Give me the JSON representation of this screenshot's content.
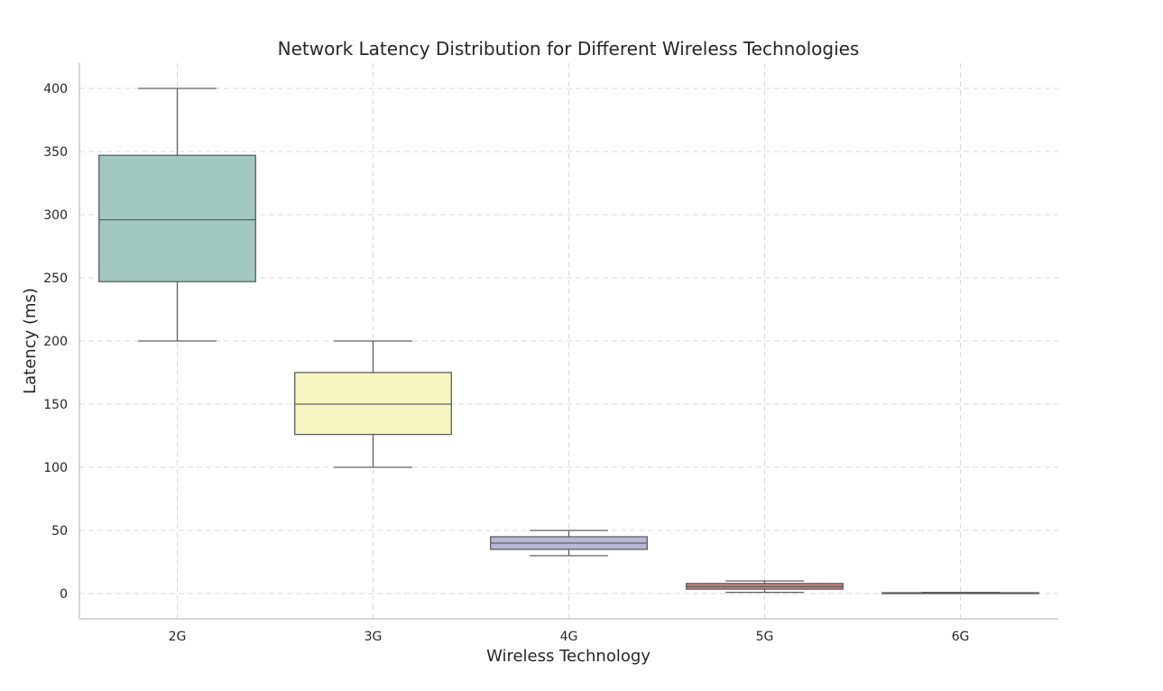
{
  "chart_data": {
    "type": "box",
    "title": "Network Latency Distribution for Different Wireless Technologies",
    "xlabel": "Wireless Technology",
    "ylabel": "Latency (ms)",
    "categories": [
      "2G",
      "3G",
      "4G",
      "5G",
      "6G"
    ],
    "ylim": [
      -20,
      420
    ],
    "yticks": [
      0,
      50,
      100,
      150,
      200,
      250,
      300,
      350,
      400
    ],
    "grid": true,
    "boxes": [
      {
        "category": "2G",
        "min": 200,
        "q1": 247,
        "median": 296,
        "q3": 347,
        "max": 400,
        "color": "#a1c8c1"
      },
      {
        "category": "3G",
        "min": 100,
        "q1": 126,
        "median": 150,
        "q3": 175,
        "max": 200,
        "color": "#f6f6c1"
      },
      {
        "category": "4G",
        "min": 30,
        "q1": 35,
        "median": 40,
        "q3": 45,
        "max": 50,
        "color": "#b9b8d3"
      },
      {
        "category": "5G",
        "min": 1,
        "q1": 3.5,
        "median": 5.5,
        "q3": 8,
        "max": 10,
        "color": "#cf817c"
      },
      {
        "category": "6G",
        "min": 0.1,
        "q1": 0.3,
        "median": 0.5,
        "q3": 0.7,
        "max": 1,
        "color": "#8aa9c7"
      }
    ]
  }
}
